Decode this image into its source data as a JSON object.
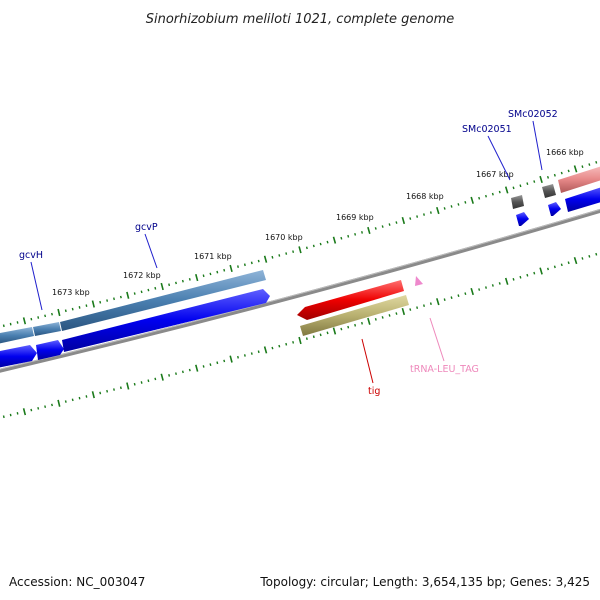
{
  "title": "Sinorhizobium meliloti 1021, complete genome",
  "footer": {
    "accession": "Accession: NC_003047",
    "summary": "Topology: circular; Length: 3,654,135 bp; Genes: 3,425"
  },
  "ticks": [
    {
      "label": "1673 kbp"
    },
    {
      "label": "1672 kbp"
    },
    {
      "label": "1671 kbp"
    },
    {
      "label": "1670 kbp"
    },
    {
      "label": "1669 kbp"
    },
    {
      "label": "1668 kbp"
    },
    {
      "label": "1667 kbp"
    },
    {
      "label": "1666 kbp"
    }
  ],
  "gene_labels": [
    {
      "text": "gcvH",
      "color": "#00008b"
    },
    {
      "text": "gcvP",
      "color": "#00008b"
    },
    {
      "text": "SMc02051",
      "color": "#00008b"
    },
    {
      "text": "SMc02052",
      "color": "#00008b"
    },
    {
      "text": "tig",
      "color": "#cc0000"
    },
    {
      "text": "tRNA-LEU_TAG",
      "color": "#ee88bb"
    }
  ],
  "colors": {
    "cds": "#0000ee",
    "gene": "#4a7fb0",
    "gene_small": "#555555",
    "tig_cds": "#ee0000",
    "tig_gene": "#b8b070",
    "pink_gene": "#e88a8a",
    "trna": "#ee88cc",
    "backbone": "#888888",
    "tick_major": "#1a7a1a"
  }
}
